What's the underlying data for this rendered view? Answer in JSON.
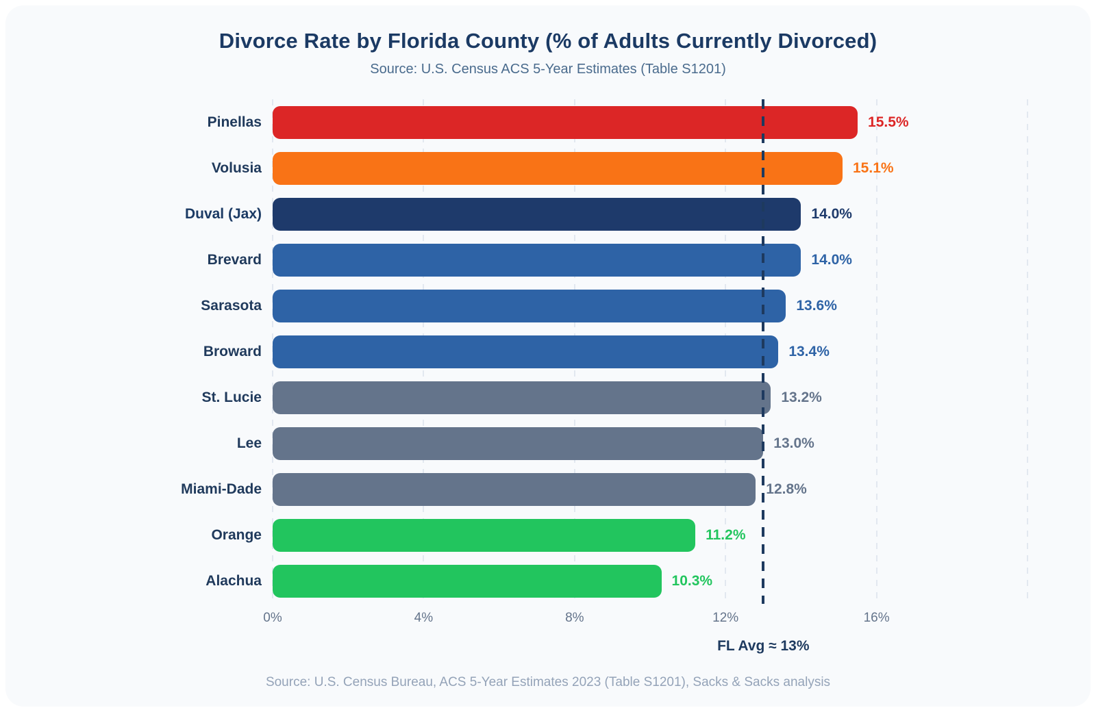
{
  "page": {
    "title": "Divorce Rate by Florida County (% of Adults Currently Divorced)",
    "subtitle": "Source: U.S. Census ACS 5-Year Estimates (Table S1201)",
    "footer": "Source: U.S. Census Bureau, ACS 5-Year Estimates 2023 (Table S1201), Sacks & Sacks analysis"
  },
  "colors": {
    "card_background": "#f8fafc",
    "page_background": "#ffffff",
    "title_text": "#1b3a64",
    "subtitle_text": "#4a6b8d",
    "axis_text": "#64748b",
    "footer_text": "#94a3b8",
    "gridline": "#e2e8f0",
    "reference_line": "#1e3a5f"
  },
  "chart_data": {
    "type": "bar",
    "orientation": "horizontal",
    "title": "Divorce Rate by Florida County (% of Adults Currently Divorced)",
    "subtitle": "Source: U.S. Census ACS 5-Year Estimates (Table S1201)",
    "xlabel": "",
    "ylabel": "",
    "xlim": [
      0,
      20
    ],
    "grid": "vertical-dashed",
    "gridline_values": [
      0,
      4,
      8,
      12,
      16,
      20
    ],
    "x_ticks": [
      {
        "label": "0%",
        "value": 0
      },
      {
        "label": "4%",
        "value": 4
      },
      {
        "label": "8%",
        "value": 8
      },
      {
        "label": "12%",
        "value": 12
      },
      {
        "label": "16%",
        "value": 16
      }
    ],
    "series": [
      {
        "label": "Pinellas",
        "value": 15.5,
        "display": "15.5%",
        "color": "#dc2626",
        "bold": false
      },
      {
        "label": "Volusia",
        "value": 15.1,
        "display": "15.1%",
        "color": "#f97316",
        "bold": false
      },
      {
        "label": "Duval (Jax)",
        "value": 14.0,
        "display": "14.0%",
        "color": "#1e3a6b",
        "bold": true
      },
      {
        "label": "Brevard",
        "value": 14.0,
        "display": "14.0%",
        "color": "#2e63a6",
        "bold": false
      },
      {
        "label": "Sarasota",
        "value": 13.6,
        "display": "13.6%",
        "color": "#2e63a6",
        "bold": false
      },
      {
        "label": "Broward",
        "value": 13.4,
        "display": "13.4%",
        "color": "#2e63a6",
        "bold": false
      },
      {
        "label": "St. Lucie",
        "value": 13.2,
        "display": "13.2%",
        "color": "#64748b",
        "bold": false
      },
      {
        "label": "Lee",
        "value": 13.0,
        "display": "13.0%",
        "color": "#64748b",
        "bold": false
      },
      {
        "label": "Miami-Dade",
        "value": 12.8,
        "display": "12.8%",
        "color": "#64748b",
        "bold": false
      },
      {
        "label": "Orange",
        "value": 11.2,
        "display": "11.2%",
        "color": "#22c55e",
        "bold": false
      },
      {
        "label": "Alachua",
        "value": 10.3,
        "display": "10.3%",
        "color": "#22c55e",
        "bold": false
      }
    ],
    "reference_line": {
      "value": 13,
      "label": "FL Avg ≈ 13%",
      "color": "#1e3a5f"
    }
  }
}
